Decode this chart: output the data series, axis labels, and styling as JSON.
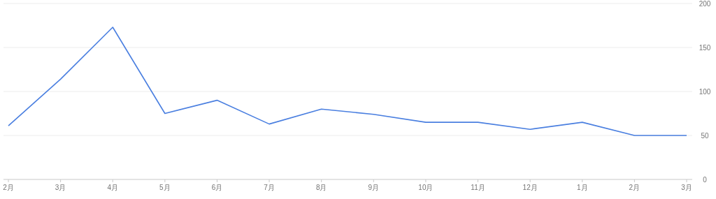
{
  "chart_data": {
    "type": "line",
    "categories": [
      "2月",
      "3月",
      "4月",
      "5月",
      "6月",
      "7月",
      "8月",
      "9月",
      "10月",
      "11月",
      "12月",
      "1月",
      "2月",
      "3月"
    ],
    "series": [
      {
        "color": "#4a7fe0",
        "values": [
          61,
          114,
          173,
          75,
          90,
          63,
          80,
          74,
          65,
          65,
          57,
          65,
          50,
          50
        ]
      }
    ],
    "ylim": [
      0,
      200
    ],
    "yticks": [
      0,
      50,
      100,
      150,
      200
    ],
    "grid": "y",
    "marker": "none",
    "line_style": "solid"
  }
}
